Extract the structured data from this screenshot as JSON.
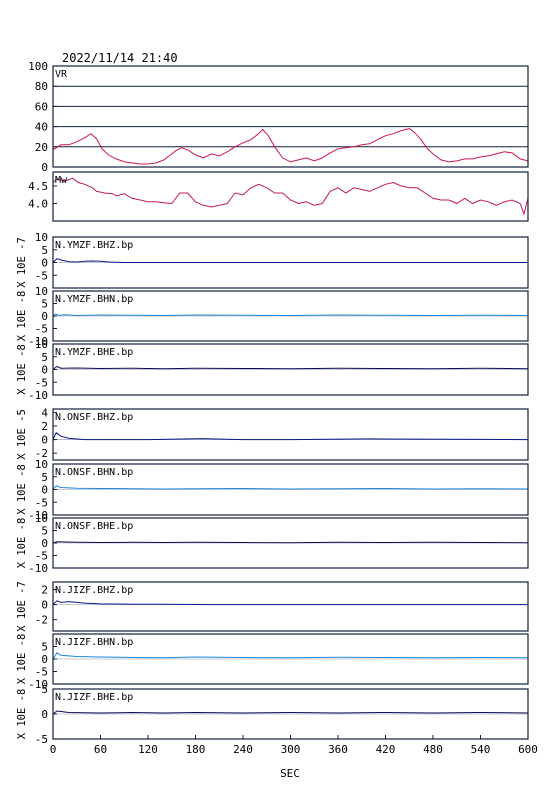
{
  "header": {
    "datetime": "2022/11/14 21:40"
  },
  "xaxis": {
    "label": "SEC",
    "ticks": [
      0,
      60,
      120,
      180,
      240,
      300,
      360,
      420,
      480,
      540,
      600
    ],
    "range": [
      0,
      600
    ]
  },
  "colors": {
    "vr": "#d0174a",
    "mw": "#c2185b",
    "bhz": "#0a1a8c",
    "bhn": "#1e88d8",
    "bhe": "#0b0b55",
    "grid": "#102040"
  },
  "chart_data": [
    {
      "id": "vr",
      "type": "line",
      "panel_label": "VR",
      "ylabel": "",
      "ylim": [
        0,
        100
      ],
      "yticks": [
        0,
        20,
        40,
        60,
        80,
        100
      ],
      "grid": true,
      "x": [
        0,
        10,
        20,
        30,
        40,
        48,
        55,
        62,
        70,
        80,
        90,
        100,
        110,
        120,
        130,
        140,
        150,
        155,
        162,
        170,
        180,
        190,
        200,
        210,
        220,
        230,
        240,
        250,
        258,
        265,
        272,
        280,
        290,
        300,
        310,
        320,
        330,
        340,
        350,
        360,
        370,
        380,
        390,
        400,
        410,
        420,
        430,
        440,
        450,
        457,
        465,
        472,
        480,
        490,
        500,
        510,
        520,
        530,
        540,
        550,
        560,
        570,
        580,
        590,
        600
      ],
      "values": [
        17,
        22,
        22,
        25,
        29,
        33,
        28,
        18,
        12,
        8,
        5,
        4,
        3,
        3,
        4,
        7,
        13,
        16,
        19,
        17,
        12,
        9,
        13,
        11,
        15,
        20,
        24,
        27,
        32,
        37,
        31,
        20,
        9,
        5,
        7,
        9,
        6,
        9,
        14,
        18,
        19,
        20,
        22,
        23,
        27,
        31,
        33,
        36,
        38,
        34,
        27,
        19,
        13,
        7,
        5,
        6,
        8,
        8,
        10,
        11,
        13,
        15,
        14,
        8,
        6
      ]
    },
    {
      "id": "mw",
      "type": "line",
      "panel_label": "Mw",
      "ylabel": "",
      "ylim": [
        3.5,
        4.9
      ],
      "yticks": [
        4.0,
        4.5
      ],
      "tick_labels": [
        "4.0",
        "4.5"
      ],
      "grid": false,
      "x": [
        0,
        5,
        15,
        25,
        32,
        40,
        50,
        55,
        65,
        75,
        80,
        90,
        100,
        110,
        120,
        130,
        140,
        150,
        160,
        170,
        180,
        190,
        200,
        210,
        220,
        230,
        240,
        250,
        260,
        270,
        280,
        290,
        300,
        310,
        320,
        330,
        340,
        350,
        360,
        370,
        380,
        390,
        400,
        410,
        420,
        430,
        440,
        450,
        460,
        470,
        480,
        490,
        500,
        510,
        520,
        530,
        540,
        550,
        560,
        570,
        580,
        590,
        595,
        600
      ],
      "values": [
        4.6,
        4.7,
        4.65,
        4.72,
        4.6,
        4.55,
        4.45,
        4.35,
        4.3,
        4.28,
        4.22,
        4.28,
        4.15,
        4.1,
        4.05,
        4.05,
        4.02,
        4.0,
        4.3,
        4.3,
        4.05,
        3.95,
        3.9,
        3.95,
        4.0,
        4.3,
        4.25,
        4.45,
        4.55,
        4.45,
        4.3,
        4.3,
        4.1,
        4.0,
        4.05,
        3.95,
        4.0,
        4.35,
        4.45,
        4.3,
        4.45,
        4.4,
        4.35,
        4.45,
        4.55,
        4.6,
        4.5,
        4.45,
        4.45,
        4.3,
        4.15,
        4.1,
        4.1,
        4.0,
        4.15,
        4.0,
        4.1,
        4.05,
        3.95,
        4.05,
        4.1,
        4.0,
        3.7,
        4.15
      ]
    },
    {
      "id": "ymzf-bhz",
      "type": "line",
      "panel_label": "N.YMZF.BHZ.bp",
      "ylabel": "X 10E -7",
      "ylim": [
        -10,
        10
      ],
      "yticks": [
        -5,
        0,
        5,
        10
      ],
      "color_key": "bhz",
      "x": [
        0,
        5,
        10,
        20,
        30,
        40,
        50,
        60,
        70,
        80,
        90,
        100,
        600
      ],
      "values": [
        0,
        1.5,
        1.0,
        0.3,
        0.2,
        0.5,
        0.6,
        0.5,
        0.2,
        0.1,
        0.0,
        0.0,
        0.0
      ]
    },
    {
      "id": "ymzf-bhn",
      "type": "line",
      "panel_label": "N.YMZF.BHN.bp",
      "ylabel": "X 10E -8",
      "ylim": [
        -10,
        10
      ],
      "yticks": [
        -10,
        -5,
        0,
        5,
        10
      ],
      "color_key": "bhn",
      "x": [
        0,
        3,
        8,
        15,
        30,
        60,
        100,
        140,
        180,
        240,
        300,
        360,
        420,
        480,
        540,
        600
      ],
      "values": [
        0,
        0.8,
        0.3,
        0.5,
        0.2,
        0.4,
        0.3,
        0.2,
        0.4,
        0.3,
        0.2,
        0.4,
        0.3,
        0.2,
        0.3,
        0.2
      ]
    },
    {
      "id": "ymzf-bhe",
      "type": "line",
      "panel_label": "N.YMZF.BHE.bp",
      "ylabel": "X 10E -8",
      "ylim": [
        -10,
        10
      ],
      "yticks": [
        -10,
        -5,
        0,
        5,
        10
      ],
      "color_key": "bhe",
      "x": [
        0,
        5,
        10,
        30,
        60,
        100,
        140,
        180,
        240,
        300,
        360,
        420,
        480,
        540,
        600
      ],
      "values": [
        0,
        1.2,
        0.5,
        0.6,
        0.4,
        0.5,
        0.3,
        0.5,
        0.4,
        0.3,
        0.5,
        0.4,
        0.3,
        0.5,
        0.3
      ]
    },
    {
      "id": "onsf-bhz",
      "type": "line",
      "panel_label": "N.ONSF.BHZ.bp",
      "ylabel": "X 10E -5",
      "ylim": [
        -3,
        4.5
      ],
      "yticks": [
        -2,
        0,
        2,
        4
      ],
      "color_key": "bhz",
      "x": [
        0,
        4,
        10,
        20,
        40,
        60,
        80,
        120,
        190,
        200,
        240,
        300,
        400,
        600
      ],
      "values": [
        0,
        1.0,
        0.5,
        0.2,
        0.0,
        0.0,
        0.0,
        0.0,
        0.15,
        0.1,
        0.0,
        0.0,
        0.1,
        0.0
      ]
    },
    {
      "id": "onsf-bhn",
      "type": "line",
      "panel_label": "N.ONSF.BHN.bp",
      "ylabel": "X 10E -8",
      "ylim": [
        -10,
        10
      ],
      "yticks": [
        -10,
        -5,
        0,
        5,
        10
      ],
      "color_key": "bhn",
      "x": [
        0,
        4,
        10,
        30,
        60,
        100,
        140,
        180,
        240,
        300,
        360,
        420,
        480,
        540,
        600
      ],
      "values": [
        0,
        1.5,
        0.8,
        0.5,
        0.4,
        0.3,
        0.2,
        0.3,
        0.4,
        0.2,
        0.3,
        0.4,
        0.2,
        0.3,
        0.2
      ]
    },
    {
      "id": "onsf-bhe",
      "type": "line",
      "panel_label": "N.ONSF.BHE.bp",
      "ylabel": "X 10E -8",
      "ylim": [
        -10,
        10
      ],
      "yticks": [
        -10,
        -5,
        0,
        5,
        10
      ],
      "color_key": "bhe",
      "x": [
        0,
        5,
        30,
        60,
        100,
        140,
        180,
        240,
        300,
        360,
        420,
        480,
        540,
        600
      ],
      "values": [
        0,
        0.5,
        0.3,
        0.2,
        0.3,
        0.2,
        0.3,
        0.2,
        0.1,
        0.3,
        0.2,
        0.3,
        0.2,
        0.1
      ]
    },
    {
      "id": "jizf-bhz",
      "type": "line",
      "panel_label": "N.JIZF.BHZ.bp",
      "ylabel": "X 10E -7",
      "ylim": [
        -3.5,
        3
      ],
      "yticks": [
        -2,
        0,
        2
      ],
      "color_key": "bhz",
      "x": [
        0,
        5,
        10,
        20,
        40,
        60,
        100,
        140,
        200,
        300,
        400,
        500,
        600
      ],
      "values": [
        0,
        0.5,
        0.3,
        0.4,
        0.2,
        0.1,
        0.05,
        0.05,
        0.0,
        0.0,
        0.0,
        0.0,
        0.0
      ]
    },
    {
      "id": "jizf-bhn",
      "type": "line",
      "panel_label": "N.JIZF.BHN.bp",
      "ylabel": "X 10E -8",
      "ylim": [
        -10,
        10
      ],
      "yticks": [
        -10,
        -5,
        0,
        5
      ],
      "color_key": "bhn",
      "x": [
        0,
        5,
        10,
        30,
        60,
        100,
        140,
        180,
        240,
        300,
        360,
        420,
        480,
        540,
        600
      ],
      "values": [
        0,
        2.5,
        1.5,
        1.0,
        0.8,
        0.6,
        0.5,
        0.8,
        0.6,
        0.5,
        0.7,
        0.6,
        0.5,
        0.6,
        0.5
      ]
    },
    {
      "id": "jizf-bhe",
      "type": "line",
      "panel_label": "N.JIZF.BHE.bp",
      "ylabel": "X 10E -8",
      "ylim": [
        -5,
        5
      ],
      "yticks": [
        -5,
        0,
        5
      ],
      "color_key": "bhe",
      "x": [
        0,
        5,
        20,
        60,
        100,
        140,
        180,
        240,
        300,
        360,
        420,
        480,
        540,
        600
      ],
      "values": [
        0,
        0.6,
        0.3,
        0.2,
        0.3,
        0.2,
        0.3,
        0.2,
        0.3,
        0.2,
        0.3,
        0.2,
        0.3,
        0.2
      ]
    }
  ]
}
